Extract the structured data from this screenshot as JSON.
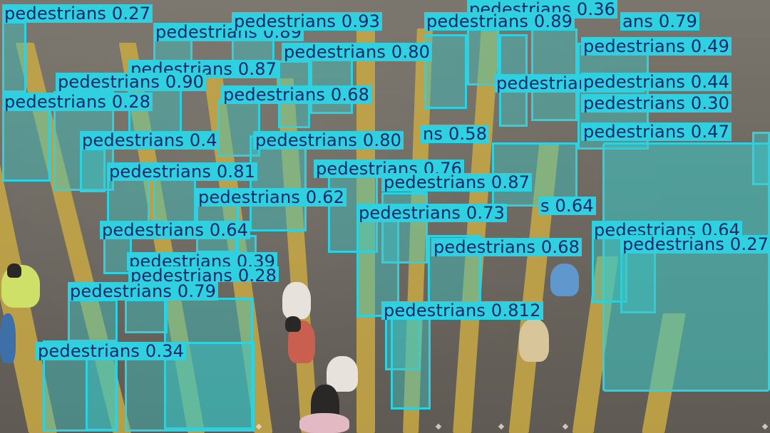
{
  "image": {
    "description_hidden": "",
    "class_name": "pedestrians",
    "colors": {
      "box": "#2fd0e0",
      "mask": "#38c8c8",
      "label_text": "#0e2a6b",
      "road": "#6e6a62",
      "crosswalk": "#c9a944"
    }
  },
  "labels": [
    "pedestrians 0.27",
    "pedestrians 0.93",
    "pedestrians 0.89",
    "ans 0.79",
    "pedestrians 0.36",
    "pedestrians 0.89",
    "pedestrians 0.80",
    "pedestrians 0.49",
    "pedestrians 0.87",
    "pedestrians 0.90",
    "pedestrians 0.44",
    "pedestrians 0.28",
    "pedestrians 0.68",
    "pedestrians 0.30",
    "pedestrians 0.47",
    "pedestrians 0.4",
    "pedestrians 0.80",
    "ns 0.58",
    "pedestrians 0.81",
    "pedestrians 0.76",
    "pedestrians 0.87",
    "pedestrians 0.62",
    "pedestrians 0.73",
    "s 0.64",
    "pedestrians 0.64",
    "pedestrians 0.64",
    "pedestrians 0.68",
    "pedestrians 0.27",
    "pedestrians 0.39",
    "pedestrians 0.28",
    "pedestrians 0.79",
    "pedestrians 0.812",
    "pedestrians 0.34"
  ]
}
